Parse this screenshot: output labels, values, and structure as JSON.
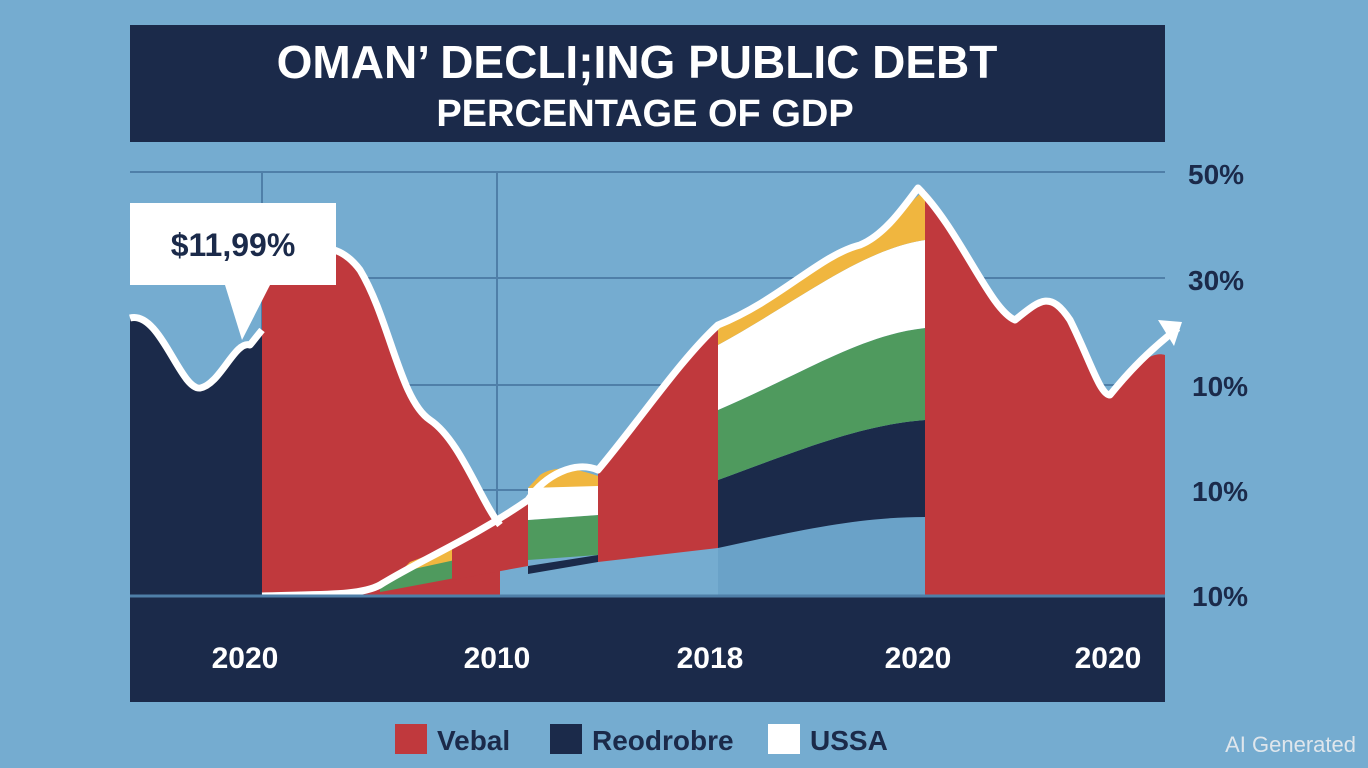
{
  "header": {
    "title": "OMAN’ DECLI;ING PUBLIC DEBT",
    "subtitle": "PERCENTAGE OF GDP"
  },
  "callout": "$11,99%",
  "y_axis_labels": [
    "50%",
    "30%",
    "10%",
    "10%",
    "10%"
  ],
  "x_axis_labels": [
    "2020",
    "2010",
    "2018",
    "2020",
    "2020"
  ],
  "legend": [
    "Vebal",
    "Reodrobre",
    "USSA"
  ],
  "watermark": "AI Generated"
}
